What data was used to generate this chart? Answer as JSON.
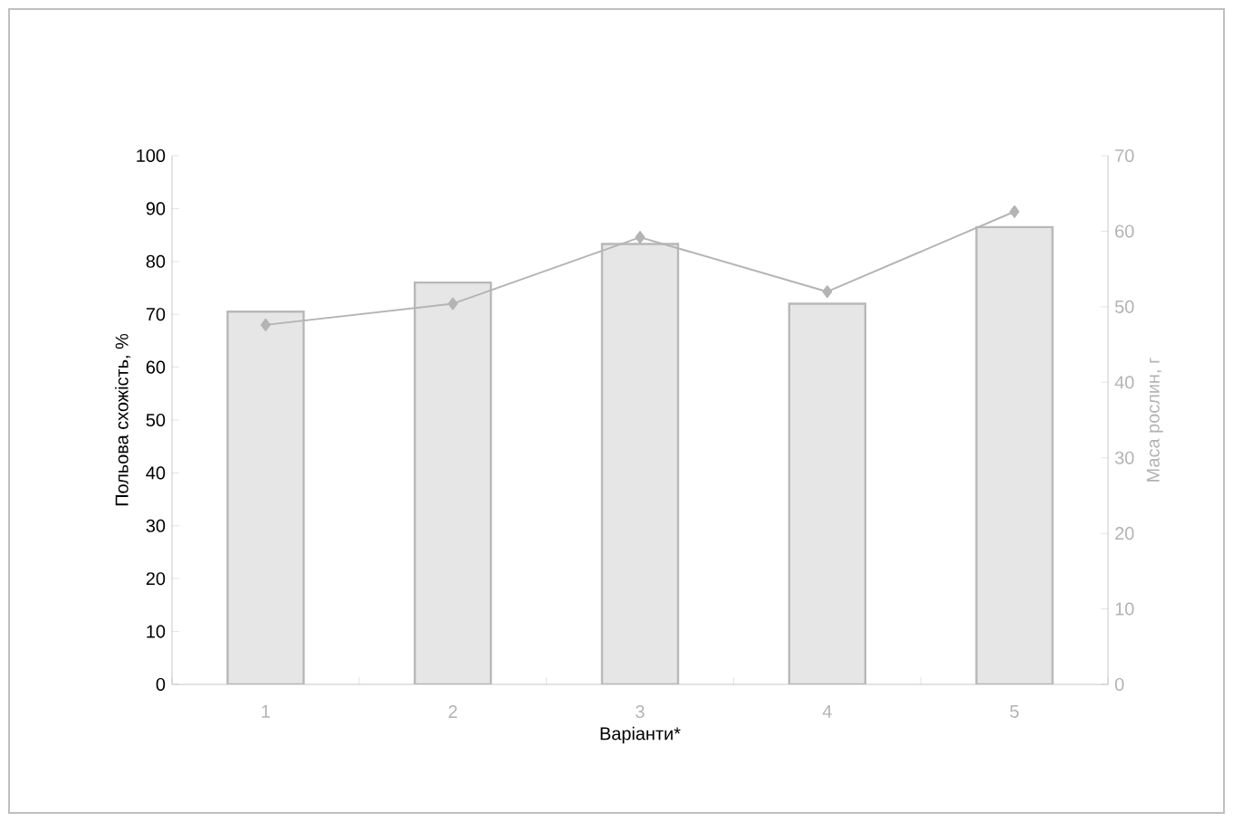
{
  "chart_data": {
    "type": "bar",
    "xlabel": "Варіанти*",
    "ylabel": "Польова схожість, %",
    "y2label": "Маса рослин, г",
    "categories": [
      "1",
      "2",
      "3",
      "4",
      "5"
    ],
    "series": [
      {
        "color": "#e6e6e6",
        "values": [
          70.5,
          76,
          83.3,
          72,
          86.5
        ]
      },
      {
        "type": "line",
        "axis": "y2",
        "color": "#b4b4b4",
        "marker": "diamond",
        "values": [
          47.6,
          50.4,
          59.2,
          52,
          62.6
        ]
      }
    ],
    "ylim": [
      0,
      100
    ],
    "yticks": [
      0,
      10,
      20,
      30,
      40,
      50,
      60,
      70,
      80,
      90,
      100
    ],
    "y2lim": [
      0,
      70
    ],
    "y2ticks": [
      0,
      10,
      20,
      30,
      40,
      50,
      60,
      70
    ],
    "grid": false,
    "legend": false
  }
}
